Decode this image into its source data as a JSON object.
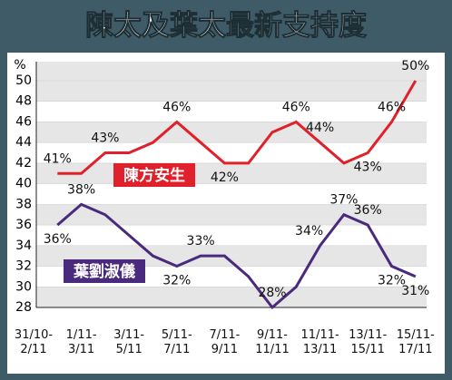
{
  "chart_data": {
    "type": "line",
    "title": "陳太及葉太最新支持度",
    "y_unit": "%",
    "categories": [
      "31/10-\n2/11",
      null,
      "1/11-\n3/11",
      null,
      "3/11-\n5/11",
      null,
      "5/11-\n7/11",
      null,
      "7/11-\n9/11",
      null,
      "9/11-\n11/11",
      null,
      "11/11-\n13/11",
      null,
      "13/11-\n15/11",
      null,
      "15/11-\n17/11"
    ],
    "series": [
      {
        "name": "陳方安生",
        "color": "#e0202a",
        "values": [
          null,
          41,
          41,
          43,
          43,
          44,
          46,
          44,
          42,
          42,
          45,
          46,
          44,
          42,
          43,
          46,
          50
        ],
        "value_labels": [
          null,
          "41%",
          null,
          "43%",
          null,
          null,
          "46%",
          null,
          "42%",
          null,
          null,
          "46%",
          "44%",
          null,
          "43%",
          "46%",
          "50%"
        ]
      },
      {
        "name": "葉劉淑儀",
        "color": "#4a2a7c",
        "values": [
          null,
          36,
          38,
          37,
          35,
          33,
          32,
          33,
          33,
          31,
          28,
          30,
          34,
          37,
          36,
          32,
          31
        ],
        "value_labels": [
          null,
          "36%",
          "38%",
          null,
          null,
          null,
          "32%",
          "33%",
          null,
          null,
          "28%",
          null,
          "34%",
          "37%",
          "36%",
          "32%",
          "31%"
        ]
      }
    ],
    "ylim": [
      28,
      50
    ],
    "yticks": [
      28,
      30,
      32,
      34,
      36,
      38,
      40,
      42,
      44,
      46,
      48,
      50
    ],
    "grid": true
  }
}
